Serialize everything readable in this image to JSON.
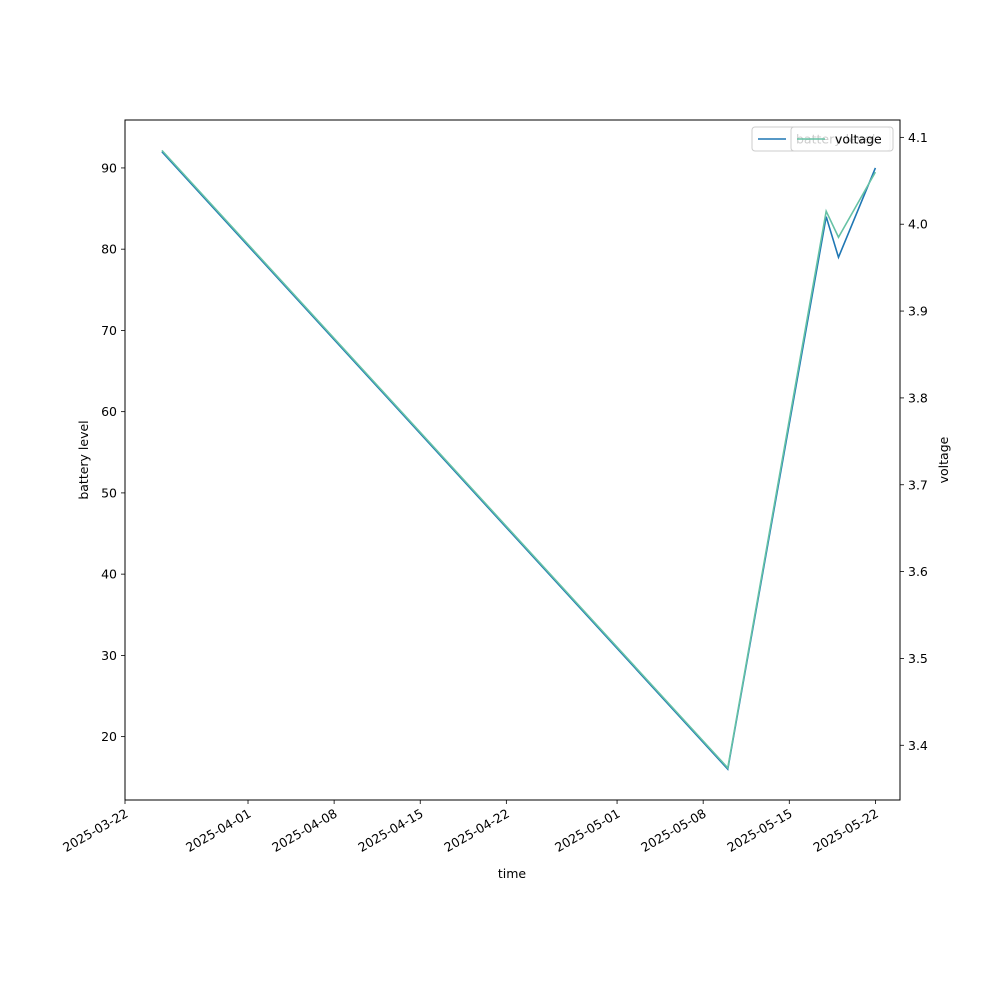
{
  "chart_data": {
    "type": "line",
    "x": [
      "2025-03-25",
      "2025-05-10",
      "2025-05-18",
      "2025-05-19",
      "2025-05-22"
    ],
    "xlim": [
      "2025-03-22",
      "2025-05-24"
    ],
    "xticks": [
      "2025-03-22",
      "2025-04-01",
      "2025-04-08",
      "2025-04-15",
      "2025-04-22",
      "2025-05-01",
      "2025-05-08",
      "2025-05-15",
      "2025-05-22"
    ],
    "xlabel": "time",
    "ylabel": "battery level",
    "y2label": "voltage",
    "ylim": [
      12.2,
      95.9
    ],
    "yticks": [
      20,
      30,
      40,
      50,
      60,
      70,
      80,
      90
    ],
    "y2lim": [
      3.337,
      4.12
    ],
    "y2ticks": [
      3.4,
      3.5,
      3.6,
      3.7,
      3.8,
      3.9,
      {
        "value": 4,
        "label": "4.0"
      },
      4.1
    ],
    "series": [
      {
        "name": "battery level",
        "color": "#1f77b4",
        "values": [
          92,
          16,
          84,
          79,
          90
        ]
      },
      {
        "name": "voltage",
        "color": "#66c2a5",
        "axis": "y2",
        "values": [
          4.085,
          3.374,
          4.015,
          3.985,
          4.06
        ]
      }
    ],
    "legend": "upper right"
  }
}
